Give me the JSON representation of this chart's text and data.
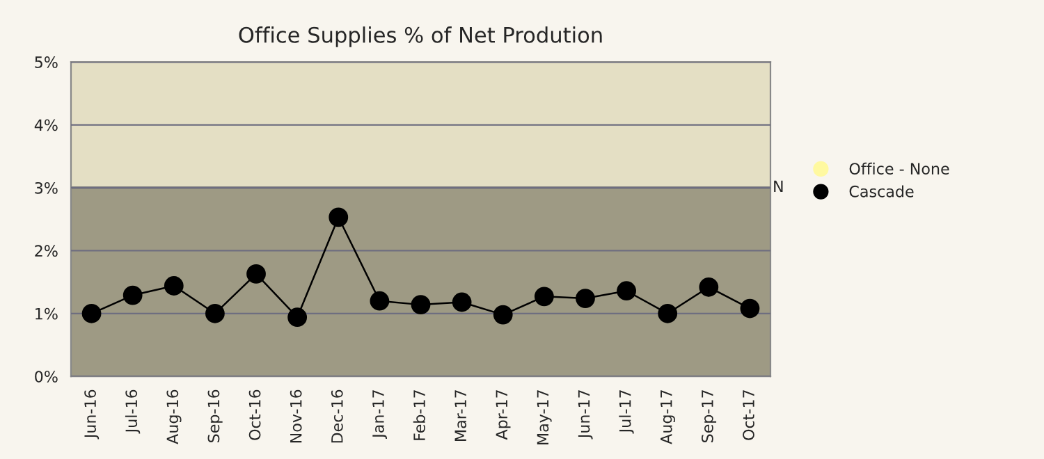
{
  "chart_data": {
    "type": "line",
    "title": "Office Supplies % of Net Prodution",
    "categories": [
      "Jun-16",
      "Jul-16",
      "Aug-16",
      "Sep-16",
      "Oct-16",
      "Nov-16",
      "Dec-16",
      "Jan-17",
      "Feb-17",
      "Mar-17",
      "Apr-17",
      "May-17",
      "Jun-17",
      "Jul-17",
      "Aug-17",
      "Sep-17",
      "Oct-17"
    ],
    "series": [
      {
        "name": "Office - None",
        "color": "#fff9a0",
        "values": [
          null,
          null,
          null,
          null,
          null,
          null,
          null,
          null,
          null,
          null,
          null,
          null,
          null,
          null,
          null,
          null,
          null
        ]
      },
      {
        "name": "Cascade",
        "color": "#000000",
        "values": [
          1.0,
          1.29,
          1.44,
          1.0,
          1.63,
          0.94,
          2.53,
          1.2,
          1.14,
          1.18,
          0.98,
          1.27,
          1.24,
          1.36,
          1.0,
          1.42,
          1.08
        ]
      }
    ],
    "ylim": [
      0,
      5
    ],
    "yticks": [
      {
        "value": 0,
        "label": "0%"
      },
      {
        "value": 1,
        "label": "1%"
      },
      {
        "value": 2,
        "label": "2%"
      },
      {
        "value": 3,
        "label": "3%"
      },
      {
        "value": 4,
        "label": "4%"
      },
      {
        "value": 5,
        "label": "5%"
      }
    ],
    "bands": [
      {
        "axis": "y",
        "from": 0,
        "to": 3,
        "color": "#9e9a84"
      },
      {
        "axis": "y",
        "from": 3,
        "to": 5,
        "color": "#e4dfc4"
      }
    ],
    "ref_lines": [
      {
        "axis": "y",
        "value": 3,
        "label": "N",
        "color": "#6e6e70"
      }
    ],
    "grid": "y",
    "legend": "right",
    "marker": "circle",
    "line_style": "solid"
  }
}
